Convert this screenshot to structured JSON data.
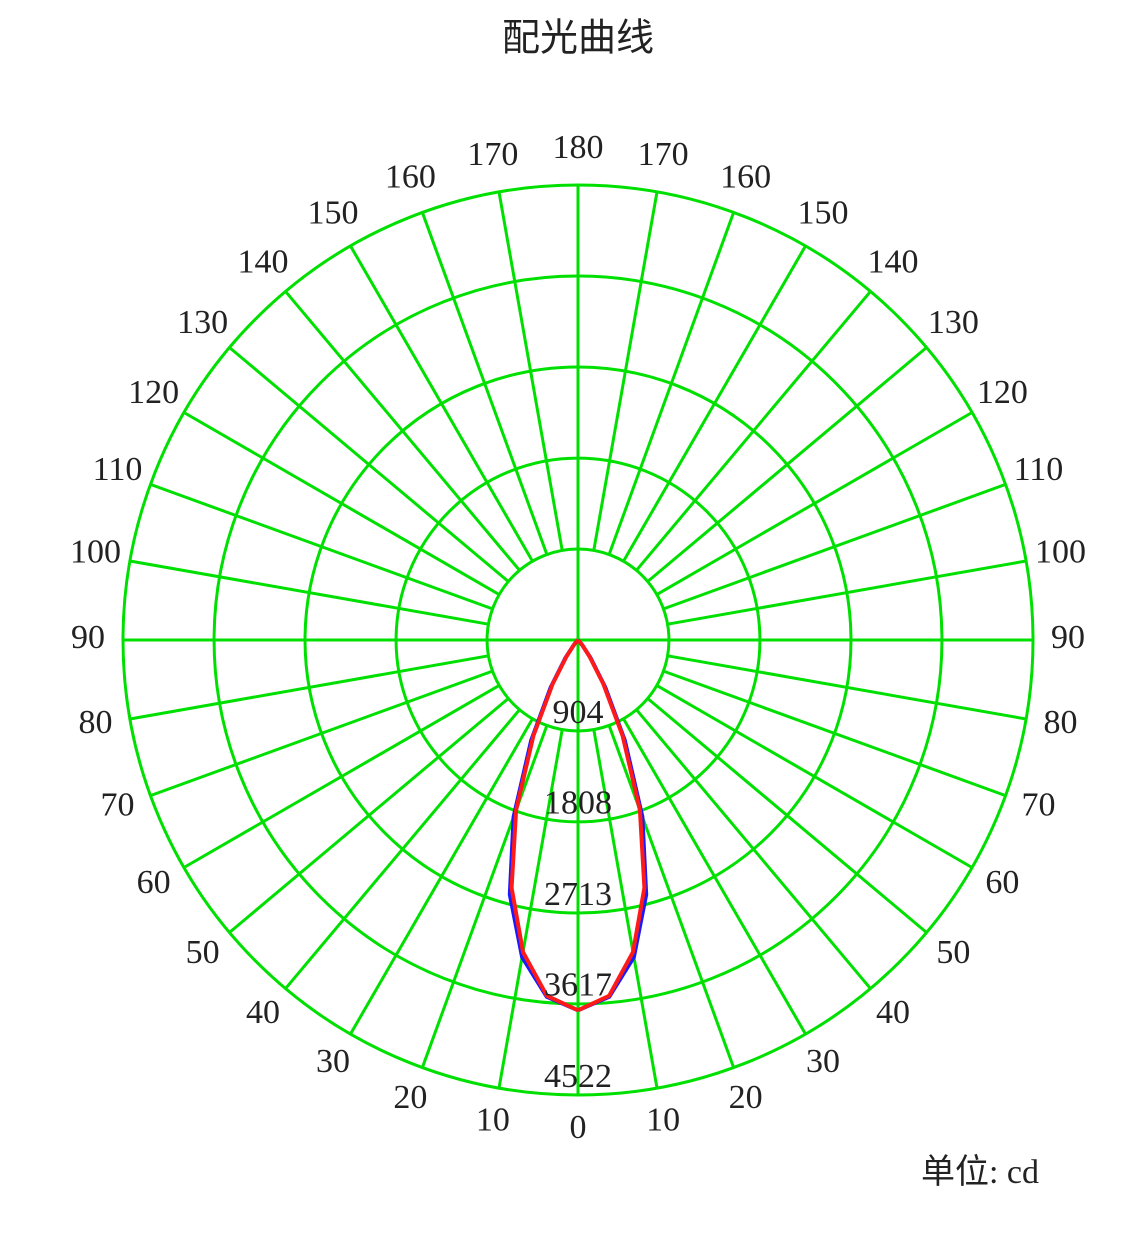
{
  "chart_data": {
    "type": "polar",
    "title": "配光曲线",
    "unit_label": "单位: cd",
    "grid_color": "#00e000",
    "rlim": [
      0,
      4522
    ],
    "rticks": [
      904,
      1808,
      2713,
      3617,
      4522
    ],
    "angle_ticks": [
      0,
      10,
      20,
      30,
      40,
      50,
      60,
      70,
      80,
      90,
      100,
      110,
      120,
      130,
      140,
      150,
      160,
      170,
      180
    ],
    "x": [
      0,
      5,
      10,
      15,
      20,
      25,
      30,
      35,
      40,
      45,
      50,
      60,
      70,
      80,
      90
    ],
    "series": [
      {
        "color": "#1a1aff",
        "values": [
          3680,
          3560,
          3200,
          2620,
          1870,
          1100,
          540,
          220,
          70,
          15,
          0,
          0,
          0,
          0,
          0
        ]
      },
      {
        "color": "#ff1a1a",
        "values": [
          3680,
          3550,
          3150,
          2550,
          1800,
          1050,
          500,
          200,
          60,
          10,
          0,
          0,
          0,
          0,
          0
        ]
      }
    ]
  }
}
